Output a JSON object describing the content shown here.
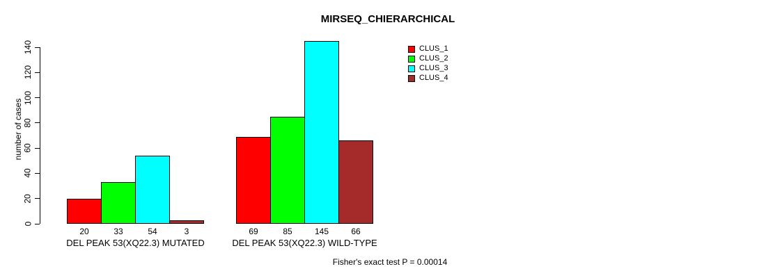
{
  "chart_data": {
    "type": "bar",
    "title": "MIRSEQ_CHIERARCHICAL",
    "xlabel": "",
    "ylabel": "number of cases",
    "ylim": [
      0,
      140
    ],
    "yticks": [
      0,
      20,
      40,
      60,
      80,
      100,
      120,
      140
    ],
    "grid": false,
    "legend_position": "top-right",
    "categories": [
      "DEL PEAK 53(XQ22.3) MUTATED",
      "DEL PEAK 53(XQ22.3) WILD-TYPE"
    ],
    "series": [
      {
        "name": "CLUS_1",
        "color": "#ff0000",
        "values": [
          20,
          69
        ]
      },
      {
        "name": "CLUS_2",
        "color": "#00ff00",
        "values": [
          33,
          85
        ]
      },
      {
        "name": "CLUS_3",
        "color": "#00ffff",
        "values": [
          54,
          145
        ]
      },
      {
        "name": "CLUS_4",
        "color": "#a52a2a",
        "values": [
          3,
          66
        ]
      }
    ],
    "groups": [
      {
        "label": "DEL PEAK 53(XQ22.3) MUTATED",
        "values": [
          20,
          33,
          54,
          3
        ]
      },
      {
        "label": "DEL PEAK 53(XQ22.3) WILD-TYPE",
        "values": [
          69,
          85,
          145,
          66
        ]
      }
    ],
    "series_colors": [
      "#ff0000",
      "#00ff00",
      "#00ffff",
      "#a52a2a"
    ],
    "legend": [
      {
        "label": "CLUS_1",
        "color": "#ff0000"
      },
      {
        "label": "CLUS_2",
        "color": "#00ff00"
      },
      {
        "label": "CLUS_3",
        "color": "#00ffff"
      },
      {
        "label": "CLUS_4",
        "color": "#a52a2a"
      }
    ],
    "bar_value_labels": [
      [
        20,
        33,
        54,
        3
      ],
      [
        69,
        85,
        145,
        66
      ]
    ]
  },
  "annotation": "Fisher's exact test P = 0.00014"
}
